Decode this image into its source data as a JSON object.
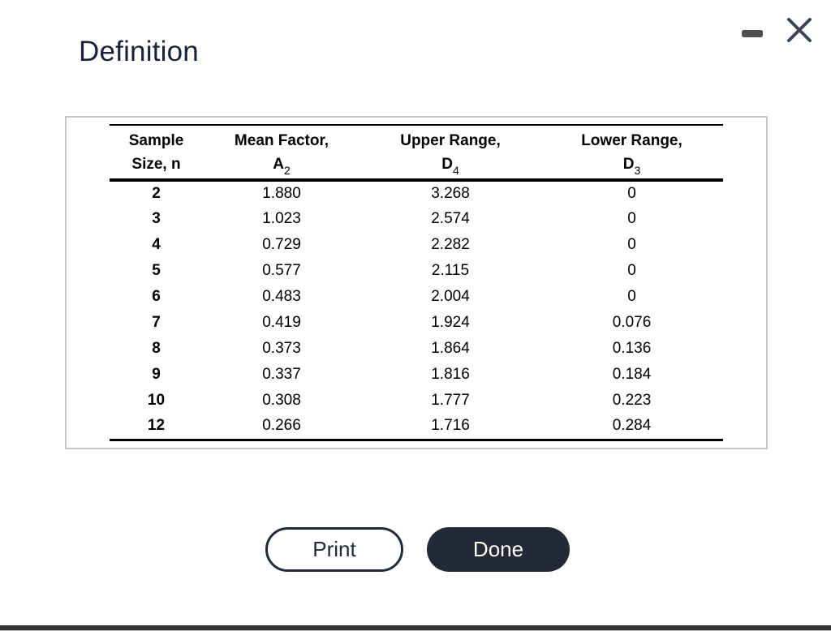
{
  "window": {
    "minimize_icon": "minimize-icon",
    "close_icon": "close-icon",
    "icon_color": "#3d4452",
    "minimize_color": "#4f4f4f"
  },
  "header": {
    "title": "Definition",
    "title_color": "#1b2138"
  },
  "table": {
    "column_keys": [
      "sample-size",
      "a2",
      "d4",
      "d3"
    ],
    "columns": [
      {
        "line1": "Sample",
        "line2": "Size, n"
      },
      {
        "line1": "Mean Factor,",
        "symbol": "A",
        "sub": "2"
      },
      {
        "line1": "Upper Range,",
        "symbol": "D",
        "sub": "4"
      },
      {
        "line1": "Lower Range,",
        "symbol": "D",
        "sub": "3"
      }
    ],
    "rows": [
      [
        "2",
        "1.880",
        "3.268",
        "0"
      ],
      [
        "3",
        "1.023",
        "2.574",
        "0"
      ],
      [
        "4",
        "0.729",
        "2.282",
        "0"
      ],
      [
        "5",
        "0.577",
        "2.115",
        "0"
      ],
      [
        "6",
        "0.483",
        "2.004",
        "0"
      ],
      [
        "7",
        "0.419",
        "1.924",
        "0.076"
      ],
      [
        "8",
        "0.373",
        "1.864",
        "0.136"
      ],
      [
        "9",
        "0.337",
        "1.816",
        "0.184"
      ],
      [
        "10",
        "0.308",
        "1.777",
        "0.223"
      ],
      [
        "12",
        "0.266",
        "1.716",
        "0.284"
      ]
    ]
  },
  "buttons": {
    "print": {
      "label": "Print"
    },
    "done": {
      "label": "Done",
      "bg_color": "#232936"
    }
  }
}
